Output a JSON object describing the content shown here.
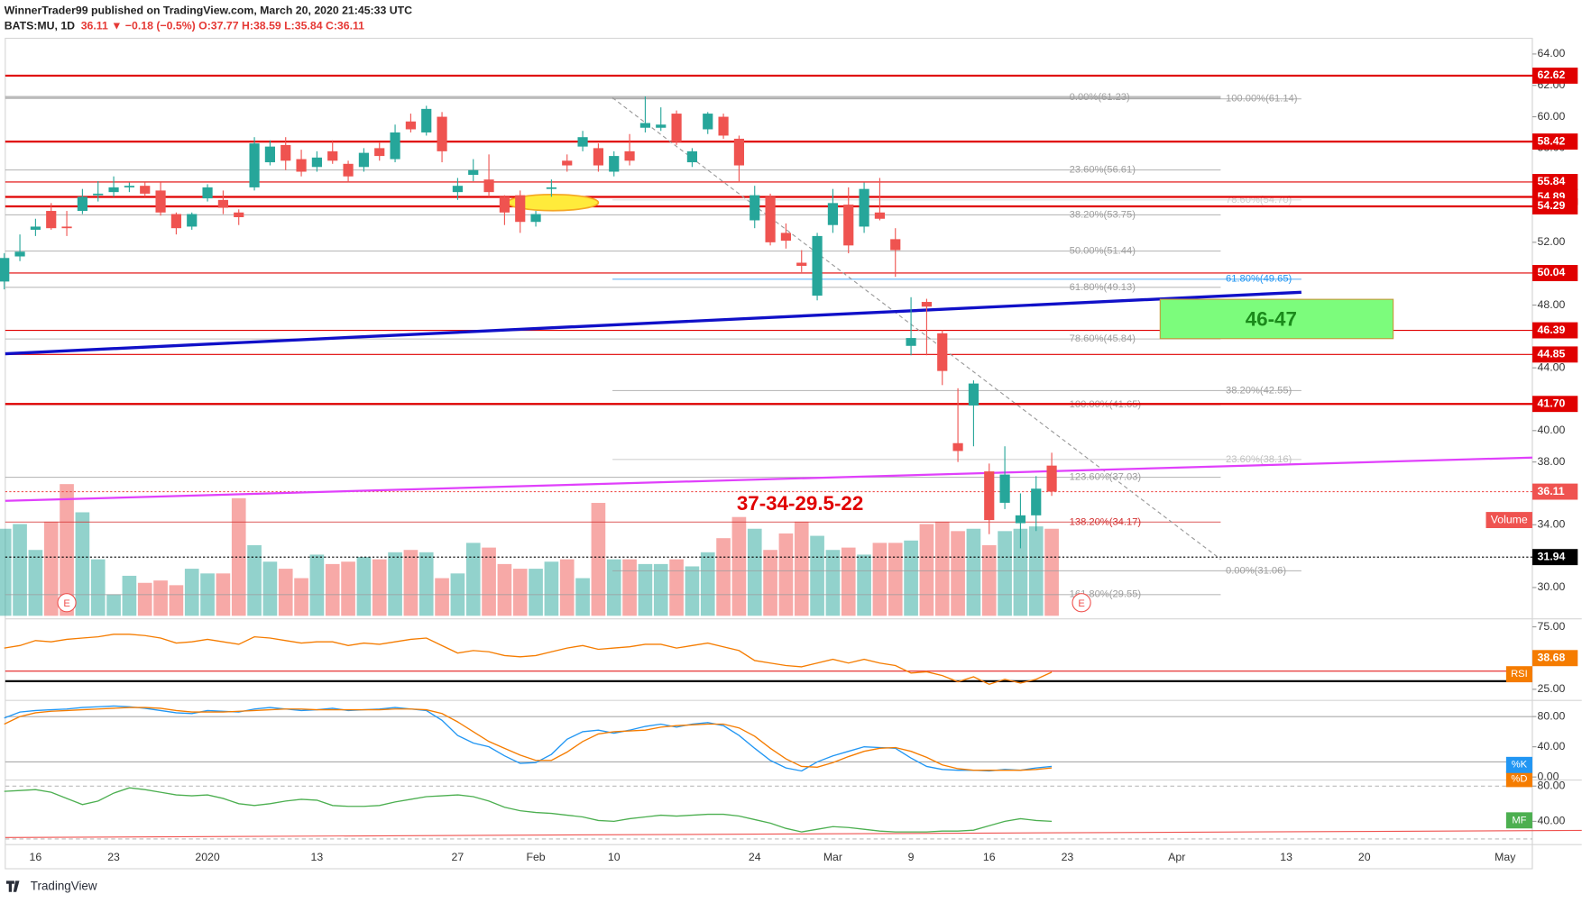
{
  "chart_data": {
    "type": "candlestick",
    "title": "WinnerTrader99 published on TradingView.com, March 20, 2020 21:45:33 UTC",
    "symbol": "BATS:MU, 1D",
    "quote": "36.11 ▼ −0.18 (−0.5%) O:37.77 H:38.59 L:35.84 C:36.11",
    "footer": "TradingView",
    "earnings_marker": "E",
    "up_color": "#26a69a",
    "down_color": "#ef5350",
    "categories": [
      null,
      null,
      "16",
      null,
      null,
      null,
      null,
      "23",
      null,
      null,
      null,
      null,
      null,
      "2020",
      null,
      null,
      null,
      null,
      null,
      null,
      "13",
      null,
      null,
      null,
      null,
      null,
      null,
      null,
      null,
      "27",
      null,
      null,
      null,
      null,
      "Feb",
      null,
      null,
      null,
      null,
      "10",
      null,
      null,
      null,
      null,
      null,
      null,
      null,
      null,
      "24",
      null,
      null,
      null,
      null,
      "Mar",
      null,
      null,
      null,
      null,
      "9",
      null,
      null,
      null,
      null,
      "16",
      null,
      null,
      null,
      null,
      "23",
      null,
      null,
      null,
      null,
      null,
      null,
      "Apr",
      null,
      null,
      null,
      null,
      null,
      null,
      "13",
      null,
      null,
      null,
      null,
      "20",
      null,
      null,
      null,
      null,
      null,
      null,
      null,
      null,
      "May",
      null
    ],
    "open": [
      49.5,
      51.1,
      52.8,
      54.0,
      53.0,
      54.0,
      55.0,
      55.2,
      55.5,
      55.6,
      55.3,
      53.8,
      53.0,
      54.8,
      54.7,
      53.9,
      55.5,
      57.1,
      58.2,
      57.3,
      56.8,
      57.8,
      57.0,
      56.8,
      58.0,
      57.3,
      59.7,
      59.0,
      60.0,
      55.2,
      56.3,
      56.0,
      54.9,
      55.0,
      53.3,
      55.4,
      57.2,
      58.1,
      58.0,
      56.5,
      57.8,
      59.3,
      59.3,
      60.2,
      57.1,
      59.2,
      60.0,
      58.6,
      53.4,
      54.9,
      52.6,
      50.7,
      48.6,
      53.1,
      54.4,
      53.0,
      53.9,
      52.2,
      45.4,
      48.2,
      46.2,
      39.2,
      41.6,
      37.4,
      35.4,
      34.1,
      34.6,
      37.77,
      null,
      null,
      null,
      null,
      null,
      null,
      null,
      null,
      null,
      null,
      null,
      null,
      null,
      null,
      null,
      null,
      null,
      null,
      null,
      null,
      null,
      null,
      null,
      null,
      null,
      null,
      null,
      null,
      null,
      null
    ],
    "high": [
      51.3,
      52.5,
      53.5,
      54.5,
      54.0,
      55.4,
      55.9,
      56.2,
      55.8,
      55.8,
      55.8,
      53.9,
      53.9,
      55.7,
      55.3,
      54.1,
      58.7,
      58.5,
      58.7,
      57.9,
      57.8,
      58.5,
      57.2,
      58.0,
      58.4,
      59.5,
      60.2,
      60.7,
      60.3,
      56.1,
      57.3,
      57.6,
      55.0,
      55.3,
      54.0,
      56.0,
      57.6,
      59.1,
      58.3,
      57.8,
      58.9,
      61.3,
      60.6,
      60.4,
      58.0,
      60.3,
      60.2,
      58.8,
      55.6,
      55.1,
      53.2,
      51.5,
      52.6,
      55.4,
      55.5,
      55.8,
      56.1,
      52.9,
      48.5,
      48.4,
      46.4,
      42.7,
      43.2,
      37.9,
      39.0,
      36.0,
      37.1,
      38.59,
      null,
      null,
      null,
      null,
      null,
      null,
      null,
      null,
      null,
      null,
      null,
      null,
      null,
      null,
      null,
      null,
      null,
      null,
      null,
      null,
      null,
      null,
      null,
      null,
      null,
      null,
      null,
      null,
      null,
      null
    ],
    "low": [
      49.0,
      50.8,
      52.4,
      52.8,
      52.4,
      53.8,
      54.6,
      54.9,
      55.2,
      54.9,
      53.7,
      52.5,
      52.8,
      54.6,
      53.8,
      53.1,
      55.3,
      56.9,
      56.6,
      56.2,
      56.5,
      57.0,
      55.8,
      56.5,
      57.2,
      57.1,
      59.0,
      58.8,
      57.1,
      54.7,
      55.9,
      54.9,
      53.1,
      52.6,
      53.0,
      54.9,
      56.5,
      57.8,
      56.5,
      56.2,
      56.9,
      59.0,
      59.1,
      58.2,
      56.8,
      58.9,
      58.6,
      55.8,
      52.9,
      51.8,
      51.6,
      50.1,
      48.3,
      52.6,
      51.3,
      52.6,
      53.4,
      49.8,
      44.8,
      44.8,
      42.9,
      38.0,
      39.0,
      33.4,
      35.0,
      32.5,
      33.6,
      35.84,
      null,
      null,
      null,
      null,
      null,
      null,
      null,
      null,
      null,
      null,
      null,
      null,
      null,
      null,
      null,
      null,
      null,
      null,
      null,
      null,
      null,
      null,
      null,
      null,
      null,
      null,
      null,
      null,
      null,
      null
    ],
    "close": [
      51.0,
      51.4,
      53.0,
      52.9,
      52.9,
      54.9,
      55.1,
      55.5,
      55.6,
      55.1,
      53.9,
      52.9,
      53.8,
      55.5,
      54.2,
      53.6,
      58.3,
      58.1,
      57.2,
      56.5,
      57.4,
      57.2,
      56.2,
      57.7,
      57.5,
      59.0,
      59.2,
      60.5,
      57.8,
      55.6,
      56.6,
      55.2,
      53.9,
      53.3,
      53.8,
      55.5,
      56.9,
      58.7,
      56.9,
      57.5,
      57.2,
      59.6,
      59.5,
      58.4,
      57.8,
      60.2,
      58.8,
      56.9,
      55.0,
      52.0,
      52.1,
      50.5,
      52.4,
      54.5,
      51.8,
      55.4,
      53.5,
      51.5,
      45.9,
      47.9,
      43.8,
      38.7,
      43.0,
      34.3,
      37.2,
      34.6,
      36.3,
      36.11,
      null,
      null,
      null,
      null,
      null,
      null,
      null,
      null,
      null,
      null,
      null,
      null,
      null,
      null,
      null,
      null,
      null,
      null,
      null,
      null,
      null,
      null,
      null,
      null,
      null,
      null,
      null,
      null,
      null,
      null
    ],
    "ylim": [
      28.2,
      65.0
    ],
    "yticks": [
      {
        "value": 64,
        "label": "64.00"
      },
      {
        "value": 62,
        "label": "62.00"
      },
      {
        "value": 60,
        "label": "60.00"
      },
      {
        "value": 58,
        "label": "58.00"
      },
      {
        "value": 52,
        "label": "52.00"
      },
      {
        "value": 48,
        "label": "48.00"
      },
      {
        "value": 44,
        "label": "44.00"
      },
      {
        "value": 40,
        "label": "40.00"
      },
      {
        "value": 38,
        "label": "38.00"
      },
      {
        "value": 34,
        "label": "34.00"
      },
      {
        "value": 30,
        "label": "30.00"
      }
    ],
    "price_lines": [
      {
        "value": 62.62,
        "color": "#e00000",
        "weight": 2
      },
      {
        "value": 58.42,
        "color": "#e00000",
        "weight": 2
      },
      {
        "value": 55.84,
        "color": "#e00000",
        "weight": 1
      },
      {
        "value": 54.89,
        "color": "#e00000",
        "weight": 2
      },
      {
        "value": 54.29,
        "color": "#e00000",
        "weight": 2
      },
      {
        "value": 50.04,
        "color": "#e00000",
        "weight": 1
      },
      {
        "value": 46.39,
        "color": "#e00000",
        "weight": 1
      },
      {
        "value": 44.85,
        "color": "#e00000",
        "weight": 1
      },
      {
        "value": 41.7,
        "label": "41.70",
        "color": "#e00000",
        "weight": 2
      },
      {
        "value": 36.11,
        "color": "#ef5350",
        "weight": 1,
        "dotted": true
      },
      {
        "value": 31.94,
        "color": "#000000",
        "weight": 1,
        "dotted": true
      }
    ],
    "fib_a": [
      {
        "label": "0.00%(61.23)",
        "value": 61.23,
        "color": "#9e9e9e"
      },
      {
        "label": "23.60%(56.61)",
        "value": 56.61,
        "color": "#9e9e9e"
      },
      {
        "label": "38.20%(53.75)",
        "value": 53.75,
        "color": "#9e9e9e"
      },
      {
        "label": "50.00%(51.44)",
        "value": 51.44,
        "color": "#9e9e9e"
      },
      {
        "label": "61.80%(49.13)",
        "value": 49.13,
        "color": "#9e9e9e"
      },
      {
        "label": "78.60%(45.84)",
        "value": 45.84,
        "color": "#9e9e9e"
      },
      {
        "label": "100.00%(41.65)",
        "value": 41.65,
        "color": "#9e9e9e"
      },
      {
        "label": "123.60%(37.03)",
        "value": 37.03,
        "color": "#9e9e9e"
      },
      {
        "label": "138.20%(34.17)",
        "value": 34.17,
        "color": "#d32f2f"
      },
      {
        "label": "161.80%(29.55)",
        "value": 29.55,
        "color": "#9e9e9e"
      }
    ],
    "fib_b": [
      {
        "label": "100.00%(61.14)",
        "value": 61.14,
        "color": "#9e9e9e"
      },
      {
        "label": "78.60%(54.70)",
        "value": 54.7,
        "color": "#d0d0d0"
      },
      {
        "label": "61.80%(49.65)",
        "value": 49.65,
        "color": "#2196f3"
      },
      {
        "label": "38.20%(42.55)",
        "value": 42.55,
        "color": "#9e9e9e"
      },
      {
        "label": "23.60%(38.16)",
        "value": 38.16,
        "color": "#c0c0c0"
      },
      {
        "label": "0.00%(31.06)",
        "value": 31.06,
        "color": "#9e9e9e"
      }
    ],
    "annotations": {
      "targets": "37-34-29.5-22",
      "zone": "46-47"
    },
    "volume": {
      "name": "Volume",
      "color": "#ef5350",
      "ylim": [
        0,
        60
      ],
      "values": [
        37,
        39,
        28,
        40,
        56,
        44,
        24,
        9,
        17,
        14,
        15,
        13,
        20,
        18,
        18,
        50,
        30,
        23,
        20,
        16,
        26,
        22,
        23,
        25,
        24,
        27,
        28,
        27,
        16,
        18,
        31,
        29,
        22,
        20,
        20,
        23,
        24,
        16,
        48,
        24,
        24,
        22,
        22,
        24,
        21,
        27,
        33,
        42,
        37,
        28,
        35,
        40,
        34,
        28,
        29,
        26,
        31,
        31,
        32,
        39,
        40,
        36,
        37,
        30,
        36,
        37,
        38,
        37,
        null,
        null,
        null,
        null,
        null,
        null,
        null,
        null,
        null,
        null,
        null,
        null,
        null,
        null,
        null,
        null,
        null,
        null,
        null,
        null,
        null,
        null,
        null,
        null,
        null,
        null,
        null,
        null,
        null,
        null
      ]
    },
    "rsi": {
      "name": "RSI",
      "color": "#f57c00",
      "ylim": [
        18.5,
        79.0
      ],
      "yticks": [
        {
          "value": 75,
          "label": "75.00"
        },
        {
          "value": 25,
          "label": "25.00"
        }
      ],
      "last": 38.68,
      "levels": [
        {
          "value": 39.5,
          "color": "#e00000"
        },
        {
          "value": 31.5,
          "color": "#000000"
        }
      ],
      "values": [
        58,
        60,
        64,
        63,
        65,
        66,
        67,
        69,
        69,
        68,
        66,
        62,
        63,
        65,
        63,
        61,
        67,
        66,
        64,
        62,
        63,
        63,
        60,
        62,
        61,
        63,
        65,
        66,
        60,
        54,
        56,
        55,
        52,
        51,
        52,
        55,
        58,
        60,
        57,
        58,
        59,
        61,
        61,
        58,
        60,
        62,
        59,
        56,
        48,
        46,
        44,
        43,
        46,
        49,
        46,
        49,
        46,
        44,
        38,
        39,
        36,
        31,
        35,
        29,
        33,
        30,
        33,
        38.68,
        null,
        null,
        null,
        null,
        null,
        null,
        null,
        null,
        null,
        null,
        null,
        null,
        null,
        null,
        null,
        null,
        null,
        null,
        null,
        null,
        null,
        null,
        null,
        null,
        null,
        null,
        null,
        null,
        null,
        null
      ]
    },
    "stoch": {
      "ylim": [
        -2.7,
        98.7
      ],
      "yticks": [
        {
          "value": 80,
          "label": "80.00"
        },
        {
          "value": 40,
          "label": "40.00"
        },
        {
          "value": 0,
          "label": "0.00"
        }
      ],
      "series": [
        {
          "name": "%K",
          "color": "#2196f3",
          "values": [
            78,
            86,
            88,
            89,
            90,
            92,
            93,
            94,
            93,
            91,
            88,
            85,
            84,
            88,
            87,
            86,
            90,
            92,
            90,
            88,
            89,
            91,
            88,
            89,
            90,
            92,
            90,
            88,
            75,
            55,
            45,
            40,
            28,
            18,
            19,
            30,
            50,
            60,
            62,
            58,
            62,
            67,
            70,
            66,
            70,
            72,
            68,
            55,
            38,
            22,
            12,
            8,
            20,
            28,
            34,
            40,
            39,
            38,
            25,
            14,
            10,
            9,
            9,
            8,
            10,
            9,
            12,
            14,
            null,
            null,
            null,
            null,
            null,
            null,
            null,
            null,
            null,
            null,
            null,
            null,
            null,
            null,
            null,
            null,
            null,
            null,
            null,
            null,
            null,
            null,
            null,
            null,
            null,
            null,
            null,
            null,
            null,
            null
          ]
        },
        {
          "name": "%D",
          "color": "#f57c00",
          "values": [
            70,
            80,
            85,
            87,
            88,
            89,
            90,
            91,
            92,
            92,
            91,
            88,
            86,
            86,
            86,
            87,
            88,
            89,
            90,
            90,
            89,
            89,
            89,
            89,
            89,
            90,
            90,
            89,
            84,
            73,
            60,
            47,
            38,
            29,
            22,
            22,
            33,
            47,
            57,
            60,
            61,
            62,
            66,
            68,
            69,
            70,
            70,
            65,
            54,
            38,
            24,
            14,
            13,
            19,
            27,
            34,
            38,
            39,
            34,
            26,
            16,
            11,
            9,
            9,
            9,
            9,
            10,
            12,
            null,
            null,
            null,
            null,
            null,
            null,
            null,
            null,
            null,
            null,
            null,
            null,
            null,
            null,
            null,
            null,
            null,
            null,
            null,
            null,
            null,
            null,
            null,
            null,
            null,
            null,
            null,
            null,
            null,
            null
          ]
        }
      ]
    },
    "mf": {
      "name": "MF",
      "color": "#4caf50",
      "ylim": [
        17.1,
        85.7
      ],
      "yticks": [
        {
          "value": 80,
          "label": "80.00"
        },
        {
          "value": 40,
          "label": "40.00"
        }
      ],
      "values": [
        74,
        75,
        76,
        73,
        66,
        59,
        63,
        72,
        78,
        76,
        73,
        70,
        69,
        70,
        66,
        60,
        58,
        60,
        63,
        65,
        64,
        58,
        57,
        57,
        58,
        62,
        65,
        68,
        69,
        70,
        68,
        63,
        56,
        52,
        50,
        49,
        47,
        45,
        41,
        40,
        43,
        45,
        47,
        46,
        47,
        48,
        48,
        46,
        42,
        38,
        32,
        28,
        31,
        34,
        33,
        31,
        29,
        28,
        28,
        28,
        29,
        29,
        30,
        35,
        40,
        43,
        41,
        40,
        null,
        null,
        null,
        null,
        null,
        null,
        null,
        null,
        null,
        null,
        null,
        null,
        null,
        null,
        null,
        null,
        null,
        null,
        null,
        null,
        null,
        null,
        null,
        null,
        null,
        null,
        null,
        null,
        null,
        null
      ]
    }
  }
}
